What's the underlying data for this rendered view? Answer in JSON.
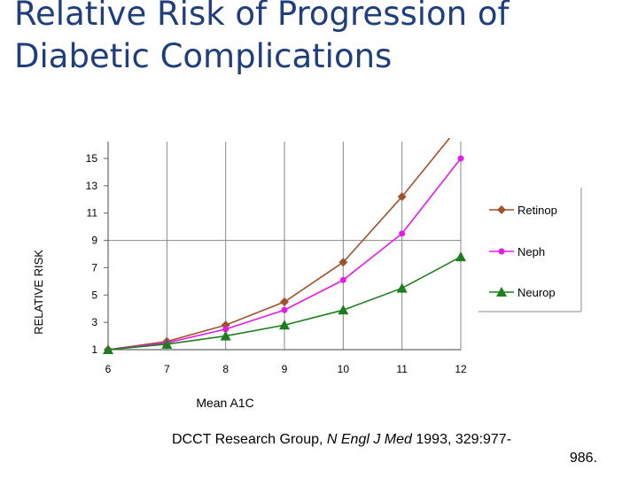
{
  "slide": {
    "title_line1": "Relative Risk of Progression of",
    "title_line2": "Diabetic Complications"
  },
  "citation": {
    "authors": "DCCT Research Group, ",
    "journal": "N Engl J Med",
    "details": " 1993, 329:977-",
    "details_cont": "986."
  },
  "colors": {
    "retinop": "#a0522d",
    "neph": "#e619e6",
    "neurop": "#1e7d1e",
    "title": "#1f3e7c"
  },
  "chart_data": {
    "type": "line",
    "title": "",
    "xlabel": "Mean A1C",
    "ylabel": "RELATIVE RISK",
    "x": [
      6,
      7,
      8,
      9,
      10,
      11,
      12
    ],
    "xticks": [
      "6",
      "7",
      "8",
      "9",
      "10",
      "11",
      "12"
    ],
    "yticks": [
      "1",
      "3",
      "5",
      "7",
      "9",
      "11",
      "13",
      "15"
    ],
    "xlim": [
      6,
      12
    ],
    "ylim": [
      1,
      15
    ],
    "grid": "vertical",
    "legend_position": "right",
    "series": [
      {
        "name": "Retinop",
        "marker": "diamond",
        "values": [
          1,
          1.6,
          2.8,
          4.5,
          7.4,
          12.2,
          17.5
        ]
      },
      {
        "name": "Neph",
        "marker": "circle",
        "values": [
          1,
          1.5,
          2.5,
          3.9,
          6.1,
          9.5,
          15.0
        ]
      },
      {
        "name": "Neurop",
        "marker": "triangle",
        "values": [
          1,
          1.4,
          2.0,
          2.8,
          3.9,
          5.5,
          7.8
        ]
      }
    ]
  }
}
